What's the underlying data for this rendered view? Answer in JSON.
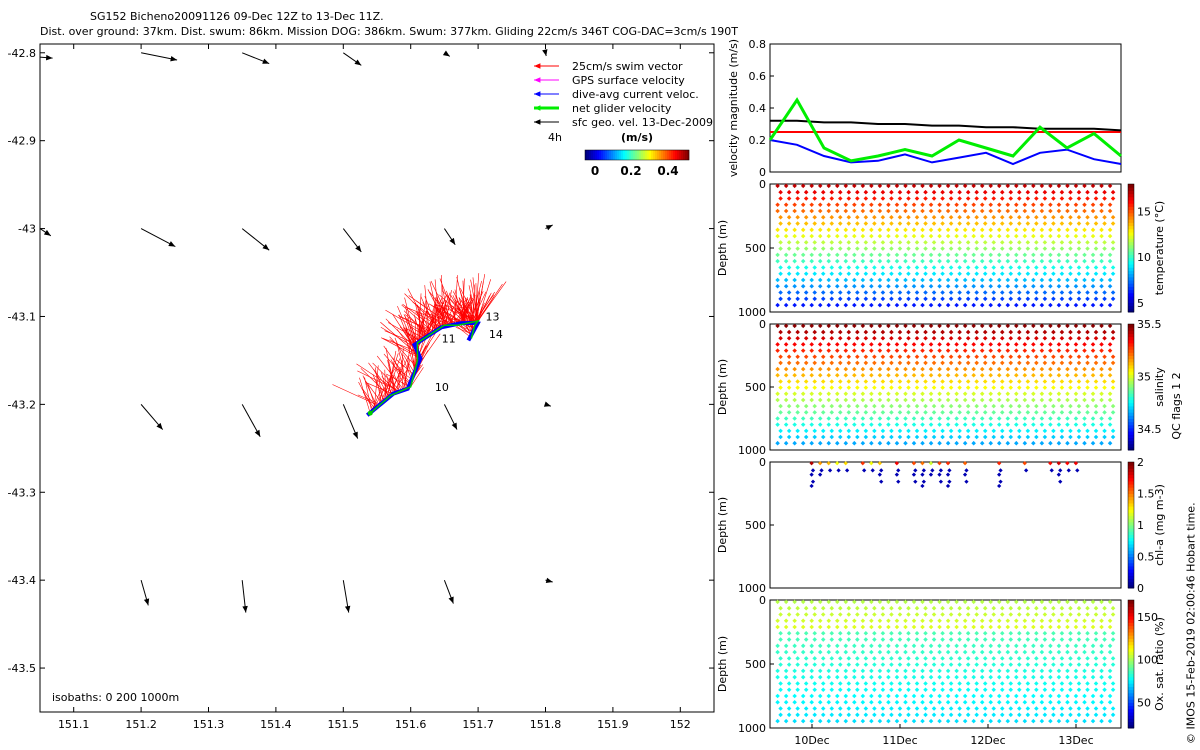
{
  "header": {
    "title": "SG152 Bicheno20091126 09-Dec 12Z to 13-Dec 11Z.",
    "subtitle": "Dist. over ground: 37km. Dist. swum: 86km. Mission DOG: 386km. Swum: 377km. Gliding 22cm/s 346T COG-DAC=3cm/s 190T"
  },
  "map": {
    "xticks": [
      "151.1",
      "151.2",
      "151.3",
      "151.4",
      "151.5",
      "151.6",
      "151.7",
      "151.8",
      "151.9",
      "152"
    ],
    "yticks": [
      "-42.8",
      "-42.9",
      "-43",
      "-43.1",
      "-43.2",
      "-43.3",
      "-43.4",
      "-43.5"
    ],
    "legend": [
      {
        "label": "25cm/s swim vector",
        "color": "#ff0000"
      },
      {
        "label": "GPS surface velocity",
        "color": "#ff00ff"
      },
      {
        "label": "dive-avg current veloc.",
        "color": "#0000ff"
      },
      {
        "label": "net glider velocity",
        "color": "#00ee00"
      },
      {
        "label": "sfc geo. vel. 13-Dec-2009",
        "color": "#000000"
      }
    ],
    "time_label": "4h",
    "colorbar_units": "(m/s)",
    "colorbar_ticks": [
      "0",
      "0.2",
      "0.4"
    ],
    "day_markers": [
      "10",
      "11",
      "13",
      "14"
    ],
    "isobaths": "isobaths: 0   200  1000m"
  },
  "panels": {
    "velocity": {
      "ylabel": "velocity magnitude (m/s)",
      "yticks": [
        "0",
        "0.2",
        "0.4",
        "0.6",
        "0.8"
      ]
    },
    "temperature": {
      "ylabel": "Depth (m)",
      "cbar_label": "temperature (°C)",
      "cbar_ticks": [
        "5",
        "10",
        "15"
      ],
      "depth_ticks": [
        "0",
        "500",
        "1000"
      ]
    },
    "salinity": {
      "ylabel": "Depth (m)",
      "cbar_label": "salinity",
      "cbar_ticks": [
        "34.5",
        "35",
        "35.5"
      ],
      "depth_ticks": [
        "0",
        "500",
        "1000"
      ]
    },
    "chla": {
      "ylabel": "Depth (m)",
      "cbar_label": "chl-a (mg m-3)",
      "cbar_ticks": [
        "0",
        "0.5",
        "1",
        "1.5",
        "2"
      ],
      "depth_ticks": [
        "0",
        "500",
        "1000"
      ]
    },
    "oxygen": {
      "ylabel": "Depth (m)",
      "cbar_label": "Ox. sat. ratio (%)",
      "cbar_ticks": [
        "50",
        "100",
        "150"
      ],
      "depth_ticks": [
        "0",
        "500",
        "1000"
      ]
    },
    "x_dates": [
      "10Dec",
      "11Dec",
      "12Dec",
      "13Dec"
    ]
  },
  "side_note": "QC flags 1  2",
  "credit": "© IMOS 15-Feb-2019 02:00:46 Hobart time.",
  "chart_data": [
    {
      "type": "scatter",
      "name": "glider track map",
      "title": "SG152 Bicheno20091126 09-Dec 12Z to 13-Dec 11Z.",
      "xlim": [
        151.05,
        152.05
      ],
      "ylim": [
        -43.55,
        -42.79
      ],
      "track": [
        [
          151.54,
          -43.21
        ],
        [
          151.57,
          -43.19
        ],
        [
          151.6,
          -43.18
        ],
        [
          151.61,
          -43.15
        ],
        [
          151.61,
          -43.13
        ],
        [
          151.63,
          -43.12
        ],
        [
          151.65,
          -43.11
        ],
        [
          151.67,
          -43.11
        ],
        [
          151.7,
          -43.105
        ],
        [
          151.695,
          -43.11
        ],
        [
          151.69,
          -43.125
        ]
      ],
      "day_markers": [
        {
          "label": "10",
          "lon": 151.63,
          "lat": -43.18
        },
        {
          "label": "11",
          "lon": 151.64,
          "lat": -43.125
        },
        {
          "label": "13",
          "lon": 151.705,
          "lat": -43.1
        },
        {
          "label": "14",
          "lon": 151.71,
          "lat": -43.12
        }
      ],
      "geo_vectors": [
        {
          "lon": 151.05,
          "lat": -42.805,
          "u": 0.07,
          "v": -0.005
        },
        {
          "lon": 151.2,
          "lat": -42.8,
          "u": 0.2,
          "v": -0.04
        },
        {
          "lon": 151.35,
          "lat": -42.8,
          "u": 0.15,
          "v": -0.06
        },
        {
          "lon": 151.5,
          "lat": -42.8,
          "u": 0.1,
          "v": -0.07
        },
        {
          "lon": 151.65,
          "lat": -42.8,
          "u": 0.03,
          "v": -0.02
        },
        {
          "lon": 151.8,
          "lat": -42.8,
          "u": 0.004,
          "v": -0.018
        },
        {
          "lon": 151.05,
          "lat": -43.0,
          "u": 0.06,
          "v": -0.04
        },
        {
          "lon": 151.2,
          "lat": -43.0,
          "u": 0.19,
          "v": -0.1
        },
        {
          "lon": 151.35,
          "lat": -43.0,
          "u": 0.15,
          "v": -0.12
        },
        {
          "lon": 151.5,
          "lat": -43.0,
          "u": 0.1,
          "v": -0.13
        },
        {
          "lon": 151.65,
          "lat": -43.0,
          "u": 0.06,
          "v": -0.09
        },
        {
          "lon": 151.8,
          "lat": -43.0,
          "u": 0.04,
          "v": 0.02
        },
        {
          "lon": 151.2,
          "lat": -43.2,
          "u": 0.12,
          "v": -0.14
        },
        {
          "lon": 151.35,
          "lat": -43.2,
          "u": 0.1,
          "v": -0.18
        },
        {
          "lon": 151.5,
          "lat": -43.2,
          "u": 0.08,
          "v": -0.19
        },
        {
          "lon": 151.65,
          "lat": -43.2,
          "u": 0.07,
          "v": -0.14
        },
        {
          "lon": 151.8,
          "lat": -43.2,
          "u": 0.03,
          "v": -0.01
        },
        {
          "lon": 151.2,
          "lat": -43.4,
          "u": 0.04,
          "v": -0.14
        },
        {
          "lon": 151.35,
          "lat": -43.4,
          "u": 0.02,
          "v": -0.18
        },
        {
          "lon": 151.5,
          "lat": -43.4,
          "u": 0.03,
          "v": -0.18
        },
        {
          "lon": 151.65,
          "lat": -43.4,
          "u": 0.05,
          "v": -0.13
        },
        {
          "lon": 151.8,
          "lat": -43.4,
          "u": 0.04,
          "v": -0.01
        }
      ]
    },
    {
      "type": "line",
      "name": "velocity magnitude",
      "ylabel": "velocity magnitude (m/s)",
      "ylim": [
        0,
        0.8
      ],
      "x_days": [
        0,
        0.3,
        0.6,
        0.9,
        1.2,
        1.5,
        1.8,
        2.1,
        2.4,
        2.7,
        3.0,
        3.3,
        3.6,
        3.9
      ],
      "series": [
        {
          "color": "#ff0000",
          "values": [
            0.25,
            0.25,
            0.25,
            0.25,
            0.25,
            0.25,
            0.25,
            0.25,
            0.25,
            0.25,
            0.25,
            0.25,
            0.25,
            0.25
          ]
        },
        {
          "color": "#000000",
          "values": [
            0.32,
            0.32,
            0.31,
            0.31,
            0.3,
            0.3,
            0.29,
            0.29,
            0.28,
            0.28,
            0.27,
            0.27,
            0.27,
            0.26
          ]
        },
        {
          "color": "#0000ff",
          "values": [
            0.2,
            0.17,
            0.1,
            0.06,
            0.07,
            0.11,
            0.06,
            0.09,
            0.12,
            0.05,
            0.12,
            0.14,
            0.08,
            0.05
          ]
        },
        {
          "color": "#00ee00",
          "values": [
            0.2,
            0.45,
            0.15,
            0.07,
            0.1,
            0.14,
            0.1,
            0.2,
            0.15,
            0.1,
            0.28,
            0.15,
            0.24,
            0.1
          ]
        }
      ]
    },
    {
      "type": "scatter",
      "name": "temperature section",
      "ylabel": "Depth (m)",
      "ylim": [
        1000,
        0
      ],
      "colorbar": {
        "label": "temperature (°C)",
        "range": [
          4,
          18
        ]
      }
    },
    {
      "type": "scatter",
      "name": "salinity section",
      "ylabel": "Depth (m)",
      "ylim": [
        1000,
        0
      ],
      "colorbar": {
        "label": "salinity",
        "range": [
          34.3,
          35.5
        ]
      }
    },
    {
      "type": "scatter",
      "name": "chl-a section",
      "ylabel": "Depth (m)",
      "ylim": [
        1000,
        0
      ],
      "colorbar": {
        "label": "chl-a (mg m-3)",
        "range": [
          0,
          2
        ]
      }
    },
    {
      "type": "scatter",
      "name": "oxygen section",
      "ylabel": "Depth (m)",
      "ylim": [
        1000,
        0
      ],
      "colorbar": {
        "label": "Ox. sat. ratio (%)",
        "range": [
          20,
          170
        ]
      }
    }
  ]
}
